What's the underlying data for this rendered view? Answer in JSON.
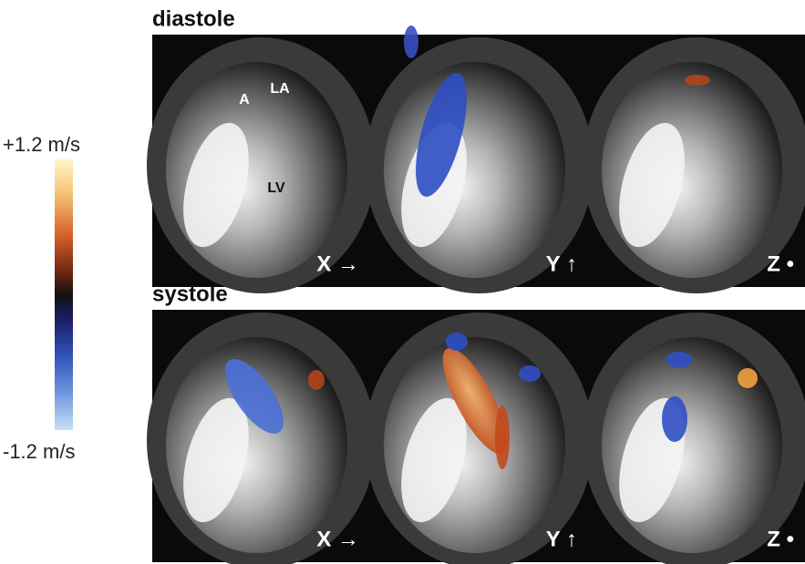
{
  "colorbar": {
    "max_label": "+1.2 m/s",
    "min_label": "-1.2 m/s"
  },
  "rows": [
    {
      "title": "diastole",
      "panels": [
        {
          "label": "X →"
        },
        {
          "label": "Y ↑"
        },
        {
          "label": "Z •"
        }
      ],
      "annotations": [
        "A",
        "LA",
        "LV"
      ]
    },
    {
      "title": "systole",
      "panels": [
        {
          "label": "X →"
        },
        {
          "label": "Y ↑"
        },
        {
          "label": "Z •"
        }
      ]
    }
  ]
}
